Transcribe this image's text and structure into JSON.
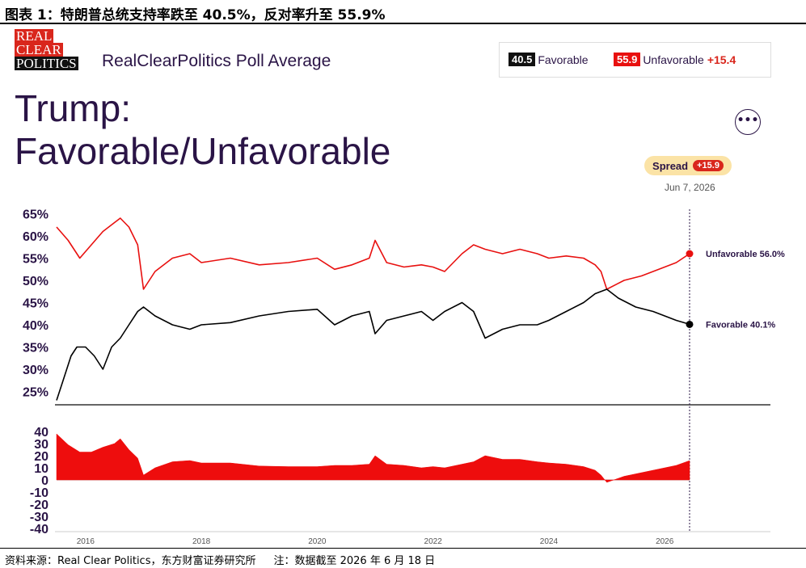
{
  "figure": {
    "title": "图表 1：特朗普总统支持率跌至 40.5%，反对率升至  55.9%",
    "source": "资料来源：Real Clear Politics，东方财富证券研究所",
    "note": "注：数据截至  2026 年 6 月 18 日"
  },
  "header": {
    "logo_lines": [
      "REAL",
      "CLEAR",
      "POLITICS"
    ],
    "site_title": "RealClearPolitics Poll Average",
    "chart_title_line1": "Trump:",
    "chart_title_line2": "Favorable/Unfavorable",
    "more_icon": "more-horizontal-icon",
    "more_label": "•••"
  },
  "legend": {
    "favorable_value": "40.5",
    "favorable_label": "Favorable",
    "unfavorable_value": "55.9",
    "unfavorable_label": "Unfavorable",
    "spread_value": "+15.4"
  },
  "spread_pill": {
    "label": "Spread",
    "value": "+15.9"
  },
  "hover_date": "Jun 7, 2026",
  "colors": {
    "unfavorable": "#e8100f",
    "favorable": "#000000",
    "title_text": "#2a1446",
    "spread_fill": "#ee0d0d",
    "pill": "#fbe3a6"
  },
  "chart_data": [
    {
      "type": "line",
      "x_ticks": [
        "2016",
        "2018",
        "2020",
        "2022",
        "2024",
        "2026"
      ],
      "ylim": [
        22,
        66
      ],
      "y_tick_labels": [
        "65%",
        "60%",
        "55%",
        "50%",
        "45%",
        "40%",
        "35%",
        "30%",
        "25%"
      ],
      "y_tick_values": [
        65,
        60,
        55,
        50,
        45,
        40,
        35,
        30,
        25
      ],
      "end_labels": {
        "unfavorable": "Unfavorable 56.0%",
        "favorable": "Favorable 40.1%"
      },
      "series": [
        {
          "name": "Unfavorable",
          "x": [
            2015.5,
            2015.7,
            2015.9,
            2016.1,
            2016.3,
            2016.5,
            2016.6,
            2016.75,
            2016.9,
            2017.0,
            2017.2,
            2017.5,
            2017.8,
            2018.0,
            2018.5,
            2019.0,
            2019.5,
            2020.0,
            2020.3,
            2020.6,
            2020.9,
            2021.0,
            2021.2,
            2021.5,
            2021.8,
            2022.0,
            2022.2,
            2022.5,
            2022.7,
            2022.9,
            2023.2,
            2023.5,
            2023.8,
            2024.0,
            2024.3,
            2024.6,
            2024.8,
            2024.9,
            2025.0,
            2025.3,
            2025.6,
            2026.0,
            2026.2,
            2026.43
          ],
          "values": [
            62,
            59,
            55,
            58,
            61,
            63,
            64,
            62,
            58,
            48,
            52,
            55,
            56,
            54,
            55,
            53.5,
            54,
            55,
            52.5,
            53.5,
            55,
            59,
            54,
            53,
            53.5,
            53,
            52,
            56,
            58,
            57,
            56,
            57,
            56,
            55,
            55.5,
            55,
            53.5,
            52,
            48,
            50,
            51,
            53,
            54,
            56
          ]
        },
        {
          "name": "Favorable",
          "x": [
            2015.5,
            2015.6,
            2015.75,
            2015.85,
            2016.0,
            2016.15,
            2016.3,
            2016.45,
            2016.6,
            2016.75,
            2016.9,
            2017.0,
            2017.2,
            2017.5,
            2017.8,
            2018.0,
            2018.5,
            2019.0,
            2019.5,
            2020.0,
            2020.3,
            2020.6,
            2020.9,
            2021.0,
            2021.2,
            2021.5,
            2021.8,
            2022.0,
            2022.2,
            2022.5,
            2022.7,
            2022.9,
            2023.2,
            2023.5,
            2023.8,
            2024.0,
            2024.3,
            2024.6,
            2024.8,
            2025.0,
            2025.2,
            2025.5,
            2025.8,
            2026.0,
            2026.2,
            2026.43
          ],
          "values": [
            23,
            27,
            33,
            35,
            35,
            33,
            30,
            35,
            37,
            40,
            43,
            44,
            42,
            40,
            39,
            40,
            40.5,
            42,
            43,
            43.5,
            40,
            42,
            43,
            38,
            41,
            42,
            43,
            41,
            43,
            45,
            43,
            37,
            39,
            40,
            40,
            41,
            43,
            45,
            47,
            48,
            46,
            44,
            43,
            42,
            41,
            40.1
          ]
        }
      ]
    },
    {
      "type": "area",
      "ylim": [
        -40,
        40
      ],
      "y_tick_labels": [
        "40",
        "30",
        "20",
        "10",
        "0",
        "-10",
        "-20",
        "-30",
        "-40"
      ],
      "y_tick_values": [
        40,
        30,
        20,
        10,
        0,
        -10,
        -20,
        -30,
        -40
      ],
      "series": [
        {
          "name": "Spread",
          "x": [
            2015.5,
            2015.7,
            2015.9,
            2016.1,
            2016.3,
            2016.5,
            2016.6,
            2016.75,
            2016.9,
            2017.0,
            2017.2,
            2017.5,
            2017.8,
            2018.0,
            2018.5,
            2019.0,
            2019.5,
            2020.0,
            2020.3,
            2020.6,
            2020.9,
            2021.0,
            2021.2,
            2021.5,
            2021.8,
            2022.0,
            2022.2,
            2022.5,
            2022.7,
            2022.9,
            2023.2,
            2023.5,
            2023.8,
            2024.0,
            2024.3,
            2024.6,
            2024.8,
            2024.9,
            2025.0,
            2025.3,
            2025.6,
            2026.0,
            2026.2,
            2026.43
          ],
          "values": [
            38,
            29,
            23,
            23,
            27,
            30,
            34,
            25,
            18,
            4,
            10,
            15,
            16,
            14,
            14,
            11.5,
            11,
            11,
            12,
            12,
            13,
            20,
            13,
            12,
            10,
            11,
            10,
            13,
            15,
            20,
            17,
            17,
            15,
            14,
            13,
            11,
            8,
            4,
            -2,
            3,
            6,
            10,
            12,
            15.9
          ]
        }
      ]
    }
  ]
}
